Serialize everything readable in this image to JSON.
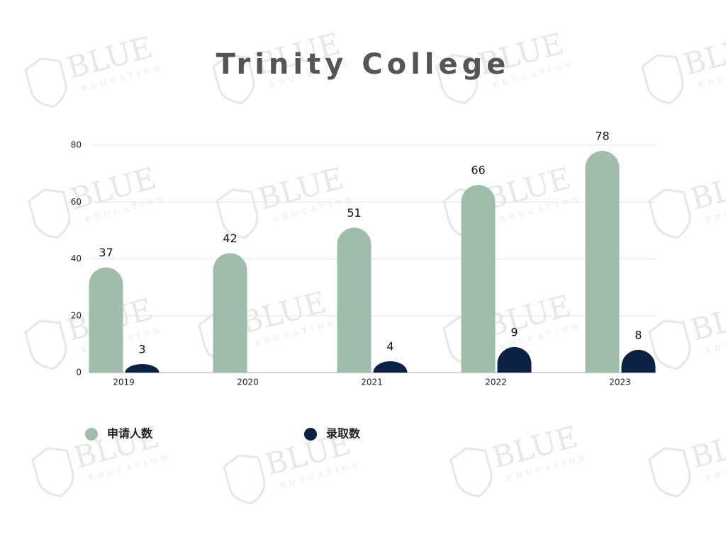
{
  "chart_data": {
    "type": "bar",
    "title": "Trinity College",
    "categories": [
      "2019",
      "2020",
      "2021",
      "2022",
      "2023"
    ],
    "series": [
      {
        "name": "申请人数",
        "color": "#a0bcaa",
        "values": [
          37,
          42,
          51,
          66,
          78
        ]
      },
      {
        "name": "录取数",
        "color": "#0b2145",
        "values": [
          3,
          null,
          4,
          9,
          8
        ]
      }
    ],
    "ylim": [
      0,
      80
    ],
    "yticks": [
      0,
      20,
      40,
      60,
      80
    ],
    "grid": true,
    "legend": "bottom-left"
  },
  "watermark": {
    "title": "BLUE",
    "subtitle": "EDUCATION"
  }
}
